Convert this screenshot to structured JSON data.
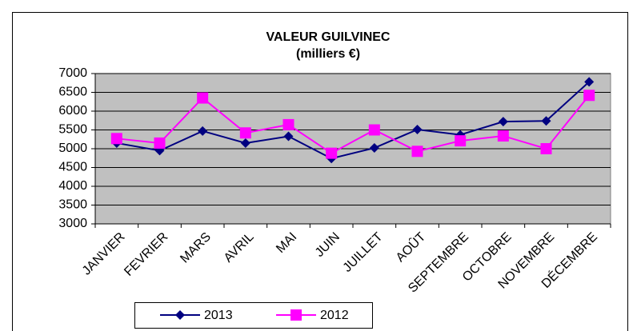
{
  "chart_data": {
    "type": "line",
    "title": "VALEUR GUILVINEC",
    "subtitle": "(milliers €)",
    "categories": [
      "JANVIER",
      "FEVRIER",
      "MARS",
      "AVRIL",
      "MAI",
      "JUIN",
      "JUILLET",
      "AOÛT",
      "SEPTEMBRE",
      "OCTOBRE",
      "NOVEMBRE",
      "DÉCEMBRE"
    ],
    "series": [
      {
        "name": "2013",
        "color": "#000080",
        "marker": "diamond",
        "values": [
          5150,
          4950,
          5470,
          5150,
          5330,
          4740,
          5020,
          5510,
          5370,
          5720,
          5740,
          6780
        ]
      },
      {
        "name": "2012",
        "color": "#ff00ff",
        "marker": "square",
        "values": [
          5270,
          5150,
          6350,
          5420,
          5640,
          4880,
          5500,
          4930,
          5210,
          5340,
          5000,
          6420
        ]
      }
    ],
    "ylim": [
      3000,
      7000
    ],
    "yticks": [
      3000,
      3500,
      4000,
      4500,
      5000,
      5500,
      6000,
      6500,
      7000
    ],
    "grid": true,
    "legend": "bottom"
  }
}
